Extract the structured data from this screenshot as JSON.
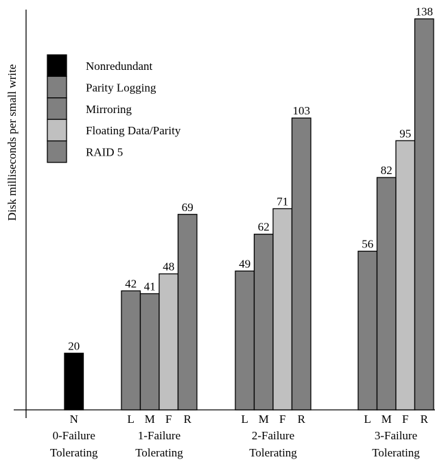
{
  "chart_data": {
    "type": "bar",
    "ylabel": "Disk milliseconds per small write",
    "ylim": [
      0,
      140
    ],
    "grid": false,
    "legend_placement": "top-left",
    "legend": [
      {
        "label": "Nonredundant",
        "color": "#000000"
      },
      {
        "label": "Parity Logging",
        "color": "#808080"
      },
      {
        "label": "Mirroring",
        "color": "#808080"
      },
      {
        "label": "Floating Data/Parity",
        "color": "#c0c0c0"
      },
      {
        "label": "RAID 5",
        "color": "#808080"
      }
    ],
    "groups": [
      {
        "label_line1": "0-Failure",
        "label_line2": "Tolerating",
        "bars": [
          {
            "letter": "N",
            "series": "Nonredundant",
            "value": 20
          }
        ]
      },
      {
        "label_line1": "1-Failure",
        "label_line2": "Tolerating",
        "bars": [
          {
            "letter": "L",
            "series": "Parity Logging",
            "value": 42
          },
          {
            "letter": "M",
            "series": "Mirroring",
            "value": 41
          },
          {
            "letter": "F",
            "series": "Floating Data/Parity",
            "value": 48
          },
          {
            "letter": "R",
            "series": "RAID 5",
            "value": 69
          }
        ]
      },
      {
        "label_line1": "2-Failure",
        "label_line2": "Tolerating",
        "bars": [
          {
            "letter": "L",
            "series": "Parity Logging",
            "value": 49
          },
          {
            "letter": "M",
            "series": "Mirroring",
            "value": 62
          },
          {
            "letter": "F",
            "series": "Floating Data/Parity",
            "value": 71
          },
          {
            "letter": "R",
            "series": "RAID 5",
            "value": 103
          }
        ]
      },
      {
        "label_line1": "3-Failure",
        "label_line2": "Tolerating",
        "bars": [
          {
            "letter": "L",
            "series": "Parity Logging",
            "value": 56
          },
          {
            "letter": "M",
            "series": "Mirroring",
            "value": 82
          },
          {
            "letter": "F",
            "series": "Floating Data/Parity",
            "value": 95
          },
          {
            "letter": "R",
            "series": "RAID 5",
            "value": 138
          }
        ]
      }
    ]
  }
}
